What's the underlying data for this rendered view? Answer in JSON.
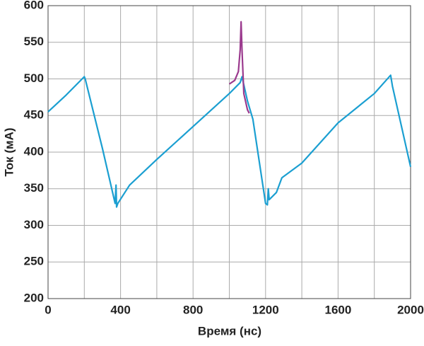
{
  "chart_data": {
    "type": "line",
    "xlabel": "Время (нс)",
    "ylabel": "Ток (мА)",
    "xlim": [
      0,
      2000
    ],
    "ylim": [
      200,
      600
    ],
    "xticks": [
      0,
      400,
      800,
      1200,
      1600,
      2000
    ],
    "x_minor_grid": [
      200,
      600,
      1000,
      1400,
      1800
    ],
    "yticks": [
      200,
      250,
      300,
      350,
      400,
      450,
      500,
      550,
      600
    ],
    "grid": true,
    "series": [
      {
        "color": "#1b9fd1",
        "x": [
          0,
          100,
          200,
          205,
          300,
          370,
          375,
          378,
          385,
          450,
          600,
          800,
          1000,
          1060,
          1070,
          1100,
          1130,
          1200,
          1210,
          1215,
          1220,
          1260,
          1290,
          1400,
          1600,
          1800,
          1890,
          1900,
          2000
        ],
        "values": [
          455,
          478,
          503,
          500,
          405,
          330,
          355,
          325,
          330,
          355,
          390,
          435,
          480,
          495,
          503,
          470,
          445,
          330,
          328,
          350,
          335,
          345,
          365,
          385,
          440,
          480,
          505,
          490,
          380
        ]
      },
      {
        "color": "#9b3a8e",
        "x": [
          1000,
          1030,
          1050,
          1060,
          1065,
          1070,
          1080,
          1100,
          1110
        ],
        "values": [
          493,
          498,
          510,
          540,
          578,
          540,
          480,
          458,
          453
        ]
      }
    ]
  }
}
